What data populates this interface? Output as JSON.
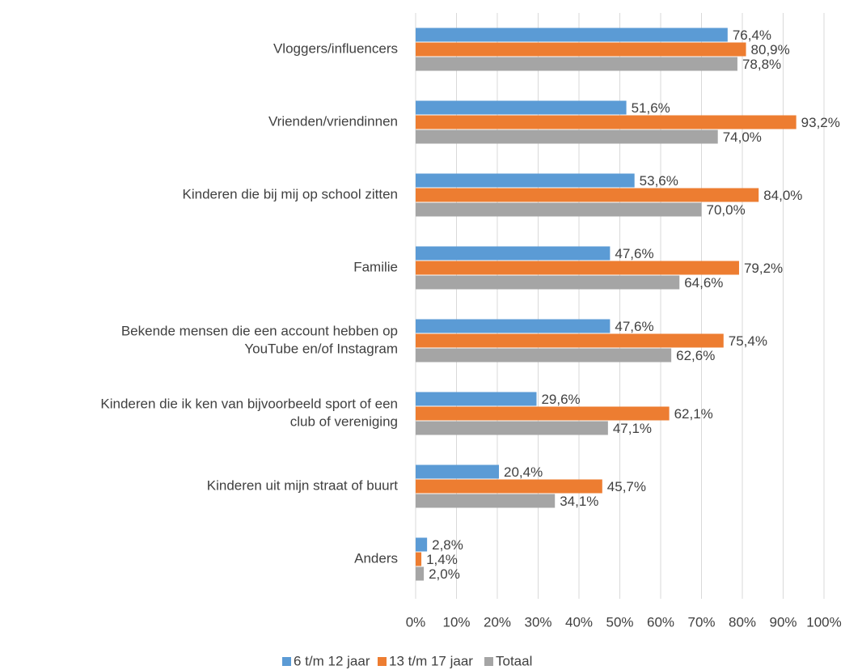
{
  "chart_data": {
    "type": "barh",
    "categories": [
      [
        "Vloggers/influencers"
      ],
      [
        "Vrienden/vriendinnen"
      ],
      [
        "Kinderen die bij mij op school zitten"
      ],
      [
        "Familie"
      ],
      [
        "Bekende mensen die een account hebben op",
        "YouTube en/of Instagram"
      ],
      [
        "Kinderen die ik ken van bijvoorbeeld sport of een",
        "club of vereniging"
      ],
      [
        "Kinderen uit mijn straat of buurt"
      ],
      [
        "Anders"
      ]
    ],
    "series": [
      {
        "name": "6 t/m 12 jaar",
        "color": "#5b9bd5",
        "values": [
          76.4,
          51.6,
          53.6,
          47.6,
          47.6,
          29.6,
          20.4,
          2.8
        ],
        "value_labels": [
          "76,4%",
          "51,6%",
          "53,6%",
          "47,6%",
          "47,6%",
          "29,6%",
          "20,4%",
          "2,8%"
        ]
      },
      {
        "name": "13 t/m 17 jaar",
        "color": "#ed7d31",
        "values": [
          80.9,
          93.2,
          84.0,
          79.2,
          75.4,
          62.1,
          45.7,
          1.4
        ],
        "value_labels": [
          "80,9%",
          "93,2%",
          "84,0%",
          "79,2%",
          "75,4%",
          "62,1%",
          "45,7%",
          "1,4%"
        ]
      },
      {
        "name": "Totaal",
        "color": "#a5a5a5",
        "values": [
          78.8,
          74.0,
          70.0,
          64.6,
          62.6,
          47.1,
          34.1,
          2.0
        ],
        "value_labels": [
          "78,8%",
          "74,0%",
          "70,0%",
          "64,6%",
          "62,6%",
          "47,1%",
          "34,1%",
          "2,0%"
        ]
      }
    ],
    "xlim": [
      0,
      100
    ],
    "xticks": [
      {
        "value": 0,
        "label": "0%"
      },
      {
        "value": 10,
        "label": "10%"
      },
      {
        "value": 20,
        "label": "20%"
      },
      {
        "value": 30,
        "label": "30%"
      },
      {
        "value": 40,
        "label": "40%"
      },
      {
        "value": 50,
        "label": "50%"
      },
      {
        "value": 60,
        "label": "60%"
      },
      {
        "value": 70,
        "label": "70%"
      },
      {
        "value": 80,
        "label": "80%"
      },
      {
        "value": 90,
        "label": "90%"
      },
      {
        "value": 100,
        "label": "100%"
      }
    ],
    "grid": true,
    "legend": "bottom"
  }
}
